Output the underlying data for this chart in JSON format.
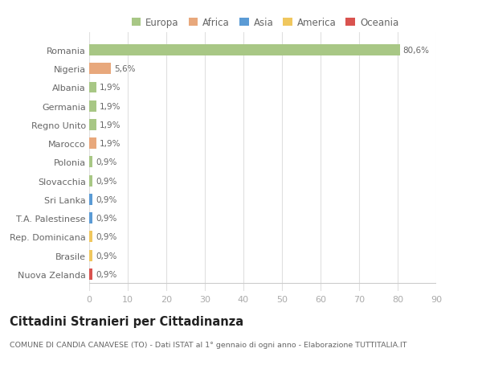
{
  "categories": [
    "Romania",
    "Nigeria",
    "Albania",
    "Germania",
    "Regno Unito",
    "Marocco",
    "Polonia",
    "Slovacchia",
    "Sri Lanka",
    "T.A. Palestinese",
    "Rep. Dominicana",
    "Brasile",
    "Nuova Zelanda"
  ],
  "values": [
    80.6,
    5.6,
    1.9,
    1.9,
    1.9,
    1.9,
    0.9,
    0.9,
    0.9,
    0.9,
    0.9,
    0.9,
    0.9
  ],
  "bar_colors": [
    "#a8c785",
    "#e8a87c",
    "#a8c785",
    "#a8c785",
    "#a8c785",
    "#e8a87c",
    "#a8c785",
    "#a8c785",
    "#5b9bd5",
    "#5b9bd5",
    "#f0c75e",
    "#f0c75e",
    "#d9534f"
  ],
  "labels": [
    "80,6%",
    "5,6%",
    "1,9%",
    "1,9%",
    "1,9%",
    "1,9%",
    "0,9%",
    "0,9%",
    "0,9%",
    "0,9%",
    "0,9%",
    "0,9%",
    "0,9%"
  ],
  "legend": [
    {
      "label": "Europa",
      "color": "#a8c785"
    },
    {
      "label": "Africa",
      "color": "#e8a87c"
    },
    {
      "label": "Asia",
      "color": "#5b9bd5"
    },
    {
      "label": "America",
      "color": "#f0c75e"
    },
    {
      "label": "Oceania",
      "color": "#d9534f"
    }
  ],
  "title": "Cittadini Stranieri per Cittadinanza",
  "subtitle": "COMUNE DI CANDIA CANAVESE (TO) - Dati ISTAT al 1° gennaio di ogni anno - Elaborazione TUTTITALIA.IT",
  "xlim": [
    0,
    90
  ],
  "xticks": [
    0,
    10,
    20,
    30,
    40,
    50,
    60,
    70,
    80,
    90
  ],
  "background_color": "#ffffff",
  "grid_color": "#e0e0e0",
  "bar_height": 0.6
}
